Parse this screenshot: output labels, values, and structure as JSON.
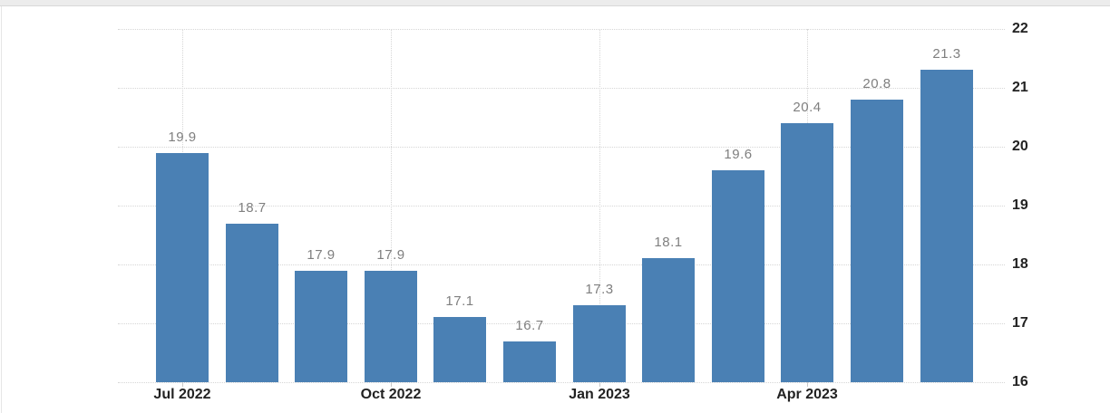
{
  "chart_data": {
    "type": "bar",
    "title": "",
    "xlabel": "",
    "ylabel": "",
    "values": [
      19.9,
      18.7,
      17.9,
      17.9,
      17.1,
      16.7,
      17.3,
      18.1,
      19.6,
      20.4,
      20.8,
      21.3
    ],
    "bar_labels": [
      "19.9",
      "18.7",
      "17.9",
      "17.9",
      "17.1",
      "16.7",
      "17.3",
      "18.1",
      "19.6",
      "20.4",
      "20.8",
      "21.3"
    ],
    "x_ticks": [
      {
        "bar_index": 0,
        "label": "Jul 2022"
      },
      {
        "bar_index": 3,
        "label": "Oct 2022"
      },
      {
        "bar_index": 6,
        "label": "Jan 2023"
      },
      {
        "bar_index": 9,
        "label": "Apr 2023"
      }
    ],
    "y_ticks": [
      "16",
      "17",
      "18",
      "19",
      "20",
      "21",
      "22"
    ],
    "ylim": [
      16,
      22
    ],
    "grid": "dotted",
    "legend": "none",
    "y_axis_position": "right",
    "colors": {
      "bar": "#4a80b4",
      "value_label": "#7f7f7f",
      "axis_label": "#222222",
      "gridline": "#d6d6d6",
      "top_band": "#ececec"
    }
  }
}
